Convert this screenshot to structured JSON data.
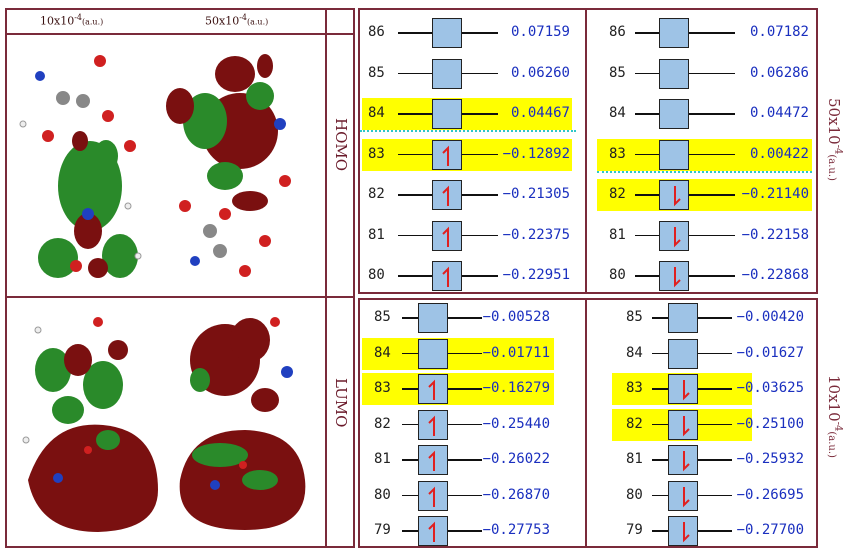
{
  "columns": {
    "left_conc": "10x10",
    "left_exp": "-4",
    "left_unit": "(a.u.)",
    "right_conc": "50x10",
    "right_exp": "-4",
    "right_unit": "(a.u.)"
  },
  "sections": {
    "homo_label": "HOMO",
    "lumo_label": "LUMO",
    "homo_side": "50x10",
    "homo_side_exp": "-4",
    "homo_side_unit": "(a.u.)",
    "lumo_side": "10x10",
    "lumo_side_exp": "-4",
    "lumo_side_unit": "(a.u.)"
  },
  "colors": {
    "frame": "#7a2a3a",
    "highlight": "#ffff00",
    "orbital_box": "#9ec3e6",
    "value_text": "#1a2fbf",
    "spin_arrow": "#e02020",
    "lobe_positive": "#7a1010",
    "lobe_negative": "#2a8a2a"
  },
  "panels": {
    "homo_left": [
      {
        "num": "86",
        "val": "0.07159",
        "spin": "",
        "hl": false
      },
      {
        "num": "85",
        "val": "0.06260",
        "spin": "",
        "hl": false
      },
      {
        "num": "84",
        "val": "0.04467",
        "spin": "",
        "hl": true
      },
      {
        "num": "83",
        "val": "−0.12892",
        "spin": "up",
        "hl": true
      },
      {
        "num": "82",
        "val": "−0.21305",
        "spin": "up",
        "hl": false
      },
      {
        "num": "81",
        "val": "−0.22375",
        "spin": "up",
        "hl": false
      },
      {
        "num": "80",
        "val": "−0.22951",
        "spin": "up",
        "hl": false
      }
    ],
    "homo_right": [
      {
        "num": "86",
        "val": "0.07182",
        "spin": "",
        "hl": false
      },
      {
        "num": "85",
        "val": "0.06286",
        "spin": "",
        "hl": false
      },
      {
        "num": "84",
        "val": "0.04472",
        "spin": "",
        "hl": false
      },
      {
        "num": "83",
        "val": "0.00422",
        "spin": "",
        "hl": true
      },
      {
        "num": "82",
        "val": "−0.21140",
        "spin": "down",
        "hl": true
      },
      {
        "num": "81",
        "val": "−0.22158",
        "spin": "down",
        "hl": false
      },
      {
        "num": "80",
        "val": "−0.22868",
        "spin": "down",
        "hl": false
      }
    ],
    "lumo_left": [
      {
        "num": "85",
        "val": "−0.00528",
        "spin": "",
        "hl": false
      },
      {
        "num": "84",
        "val": "−0.01711",
        "spin": "",
        "hl": true
      },
      {
        "num": "83",
        "val": "−0.16279",
        "spin": "up",
        "hl": true
      },
      {
        "num": "82",
        "val": "−0.25440",
        "spin": "up",
        "hl": false
      },
      {
        "num": "81",
        "val": "−0.26022",
        "spin": "up",
        "hl": false
      },
      {
        "num": "80",
        "val": "−0.26870",
        "spin": "up",
        "hl": false
      },
      {
        "num": "79",
        "val": "−0.27753",
        "spin": "up",
        "hl": false
      }
    ],
    "lumo_right": [
      {
        "num": "85",
        "val": "−0.00420",
        "spin": "",
        "hl": false
      },
      {
        "num": "84",
        "val": "−0.01627",
        "spin": "",
        "hl": false
      },
      {
        "num": "83",
        "val": "−0.03625",
        "spin": "down",
        "hl": true
      },
      {
        "num": "82",
        "val": "−0.25100",
        "spin": "down",
        "hl": true
      },
      {
        "num": "81",
        "val": "−0.25932",
        "spin": "down",
        "hl": false
      },
      {
        "num": "80",
        "val": "−0.26695",
        "spin": "down",
        "hl": false
      },
      {
        "num": "79",
        "val": "−0.27700",
        "spin": "down",
        "hl": false
      }
    ]
  }
}
